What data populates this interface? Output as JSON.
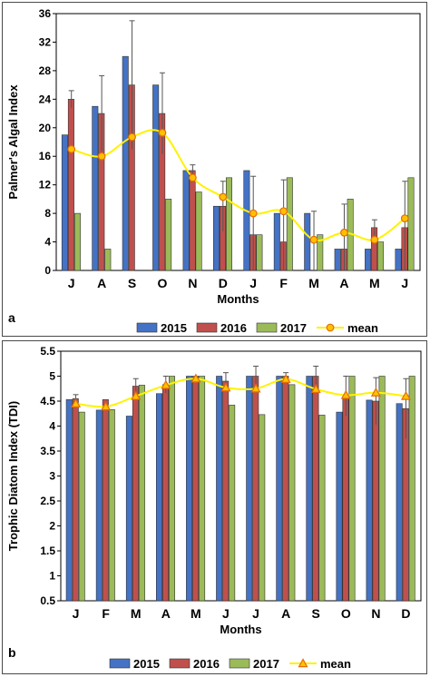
{
  "colors": {
    "s2015": "#4472C4",
    "s2016": "#C0504D",
    "s2017": "#9BBB59",
    "mean_line": "#FFF200",
    "mean_marker_fill": "#FFC000",
    "mean_marker_stroke": "#E36C09"
  },
  "chart_data": [
    {
      "type": "bar",
      "panel_label": "a",
      "xlabel": "Months",
      "ylabel": "Palmer's Algal Index",
      "ylim": [
        0,
        36
      ],
      "yticks": [
        "0",
        "4",
        "8",
        "12",
        "16",
        "20",
        "24",
        "28",
        "32",
        "36"
      ],
      "categories": [
        "J",
        "A",
        "S",
        "O",
        "N",
        "D",
        "J",
        "F",
        "M",
        "A",
        "M",
        "J"
      ],
      "series": [
        {
          "name": "2015",
          "values": [
            19,
            23,
            30,
            26,
            14,
            9,
            14,
            8,
            8,
            3,
            3,
            3
          ]
        },
        {
          "name": "2016",
          "values": [
            24,
            22,
            26,
            22,
            14,
            9,
            5,
            4,
            0,
            3,
            6,
            6
          ]
        },
        {
          "name": "2017",
          "values": [
            8,
            3,
            0,
            10,
            11,
            13,
            5,
            13,
            5,
            10,
            4,
            13
          ]
        }
      ],
      "errors": [
        {
          "cat": 0,
          "series": 1,
          "up": 1.2
        },
        {
          "cat": 1,
          "series": 1,
          "up": 5.3
        },
        {
          "cat": 2,
          "series": 1,
          "up": 9
        },
        {
          "cat": 3,
          "series": 1,
          "up": 5.7
        },
        {
          "cat": 4,
          "series": 1,
          "up": 0.8
        },
        {
          "cat": 5,
          "series": 1,
          "up": 3.5
        },
        {
          "cat": 6,
          "series": 1,
          "up": 8.2
        },
        {
          "cat": 7,
          "series": 1,
          "up": 8.7
        },
        {
          "cat": 8,
          "series": 1,
          "up": 8.3
        },
        {
          "cat": 9,
          "series": 1,
          "up": 6.3
        },
        {
          "cat": 10,
          "series": 1,
          "up": 1.1
        },
        {
          "cat": 11,
          "series": 1,
          "up": 6.5
        }
      ],
      "mean": {
        "name": "mean",
        "marker": "circle",
        "values": [
          17,
          16,
          18.7,
          19.3,
          13,
          10.3,
          8,
          8.3,
          4.3,
          5.3,
          4.3,
          7.3
        ]
      },
      "legend": [
        "2015",
        "2016",
        "2017",
        "mean"
      ],
      "legend_position": "bottom"
    },
    {
      "type": "bar",
      "panel_label": "b",
      "xlabel": "Months",
      "ylabel": "Trophic Diatom Index (TDI)",
      "ylim": [
        0.5,
        5.5
      ],
      "yticks": [
        "0.5",
        "1",
        "1.5",
        "2",
        "2.5",
        "3",
        "3.5",
        "4",
        "4.5",
        "5",
        "5.5"
      ],
      "categories": [
        "J",
        "F",
        "M",
        "A",
        "M",
        "J",
        "J",
        "A",
        "S",
        "O",
        "N",
        "D"
      ],
      "series": [
        {
          "name": "2015",
          "values": [
            4.53,
            4.32,
            4.2,
            4.65,
            5.0,
            5.0,
            5.0,
            5.0,
            5.0,
            4.28,
            4.52,
            4.45
          ]
        },
        {
          "name": "2016",
          "values": [
            4.55,
            4.53,
            4.8,
            4.83,
            5.0,
            4.9,
            5.0,
            5.0,
            5.0,
            4.6,
            4.5,
            4.35
          ]
        },
        {
          "name": "2017",
          "values": [
            4.28,
            4.33,
            4.82,
            5.0,
            5.0,
            4.42,
            4.23,
            4.83,
            4.22,
            5.0,
            5.0,
            5.0
          ]
        }
      ],
      "errors": [
        {
          "cat": 0,
          "series": 1,
          "up": 0.08
        },
        {
          "cat": 2,
          "series": 1,
          "up": 0.15
        },
        {
          "cat": 3,
          "series": 1,
          "up": 0.17
        },
        {
          "cat": 5,
          "series": 1,
          "up": 0.17
        },
        {
          "cat": 6,
          "series": 1,
          "up": 0.2
        },
        {
          "cat": 7,
          "series": 1,
          "up": 0.07
        },
        {
          "cat": 8,
          "series": 1,
          "up": 0.2
        },
        {
          "cat": 9,
          "series": 1,
          "up": 0.4
        },
        {
          "cat": 10,
          "series": 1,
          "up": 0.47
        },
        {
          "cat": 11,
          "series": 1,
          "up": 0.6
        }
      ],
      "mean": {
        "name": "mean",
        "marker": "triangle",
        "values": [
          4.45,
          4.39,
          4.6,
          4.82,
          4.95,
          4.77,
          4.75,
          4.94,
          4.74,
          4.62,
          4.67,
          4.6
        ]
      },
      "legend": [
        "2015",
        "2016",
        "2017",
        "mean"
      ],
      "legend_position": "bottom"
    }
  ]
}
